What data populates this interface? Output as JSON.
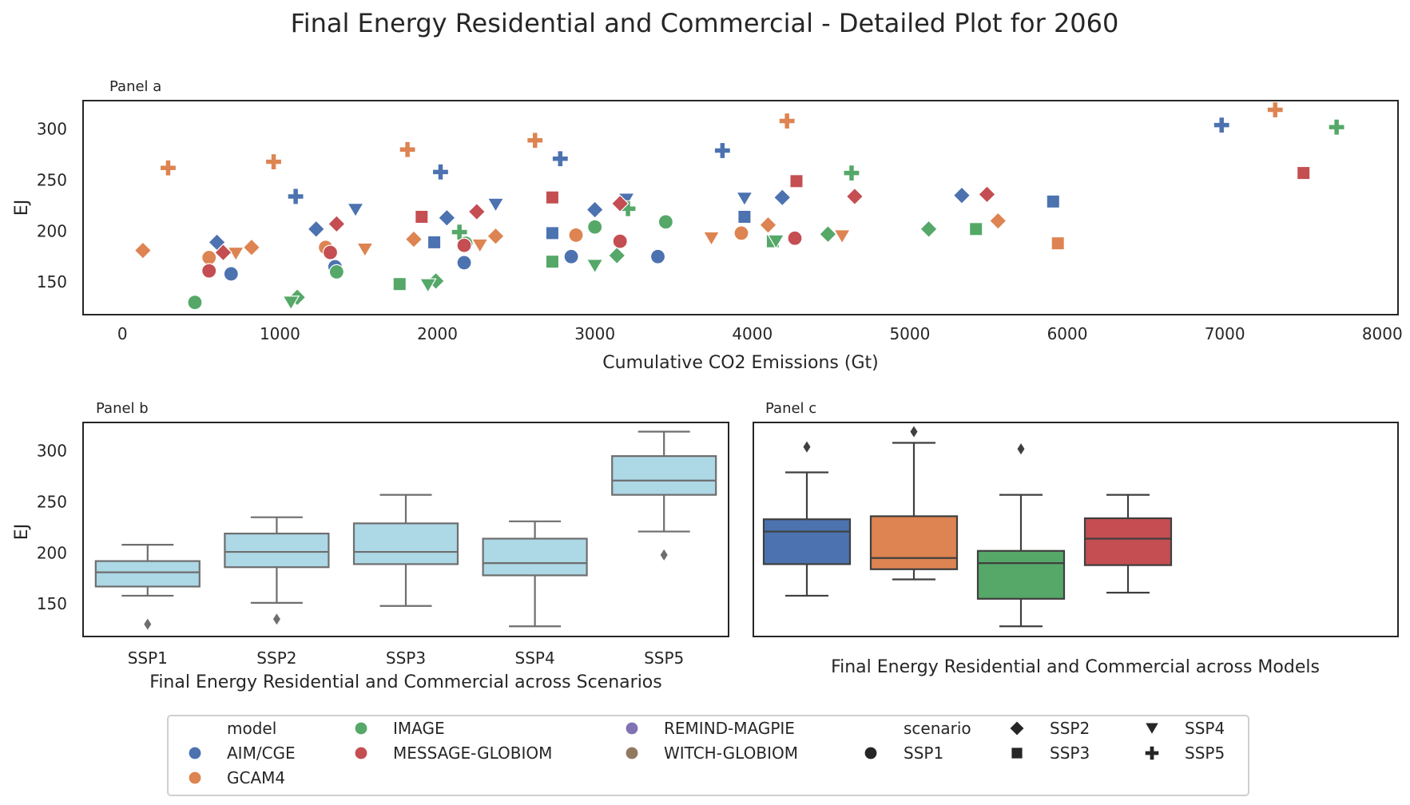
{
  "figure": {
    "title": "Final Energy Residential and Commercial - Detailed Plot for 2060"
  },
  "colors": {
    "AIM/CGE": "#4c72b0",
    "GCAM4": "#dd8452",
    "IMAGE": "#55a868",
    "MESSAGE-GLOBIOM": "#c44e52",
    "REMIND-MAGPIE": "#8172b3",
    "WITCH-GLOBIOM": "#937860",
    "box_scenario": "#add8e6",
    "axis": "#262626",
    "whisker": "#6e6e6e",
    "whisker_models": "#3f3f3f"
  },
  "legend": {
    "model_header": "model",
    "scenario_header": "scenario",
    "models": [
      "AIM/CGE",
      "GCAM4",
      "IMAGE",
      "MESSAGE-GLOBIOM",
      "REMIND-MAGPIE",
      "WITCH-GLOBIOM"
    ],
    "scenarios": [
      {
        "name": "SSP1",
        "marker": "circle"
      },
      {
        "name": "SSP2",
        "marker": "diamond"
      },
      {
        "name": "SSP3",
        "marker": "square"
      },
      {
        "name": "SSP4",
        "marker": "triangle-down"
      },
      {
        "name": "SSP5",
        "marker": "plus"
      }
    ]
  },
  "chart_data": [
    {
      "type": "scatter",
      "panel_label": "Panel a",
      "xlabel": "Cumulative CO2 Emissions (Gt)",
      "ylabel": "EJ",
      "xlim": [
        -250,
        8100
      ],
      "ylim": [
        118,
        328
      ],
      "xticks": [
        0,
        1000,
        2000,
        3000,
        4000,
        5000,
        6000,
        7000,
        8000
      ],
      "yticks": [
        150,
        200,
        250,
        300
      ],
      "grid": false,
      "points": [
        {
          "model": "AIM/CGE",
          "scenario": "SSP1",
          "x": 690,
          "y": 158
        },
        {
          "model": "AIM/CGE",
          "scenario": "SSP1",
          "x": 1350,
          "y": 165
        },
        {
          "model": "AIM/CGE",
          "scenario": "SSP1",
          "x": 2170,
          "y": 169
        },
        {
          "model": "AIM/CGE",
          "scenario": "SSP1",
          "x": 2850,
          "y": 175
        },
        {
          "model": "AIM/CGE",
          "scenario": "SSP1",
          "x": 3400,
          "y": 175
        },
        {
          "model": "AIM/CGE",
          "scenario": "SSP2",
          "x": 600,
          "y": 189
        },
        {
          "model": "AIM/CGE",
          "scenario": "SSP2",
          "x": 1230,
          "y": 202
        },
        {
          "model": "AIM/CGE",
          "scenario": "SSP2",
          "x": 2060,
          "y": 213
        },
        {
          "model": "AIM/CGE",
          "scenario": "SSP2",
          "x": 3000,
          "y": 221
        },
        {
          "model": "AIM/CGE",
          "scenario": "SSP2",
          "x": 4190,
          "y": 233
        },
        {
          "model": "AIM/CGE",
          "scenario": "SSP2",
          "x": 5330,
          "y": 235
        },
        {
          "model": "AIM/CGE",
          "scenario": "SSP3",
          "x": 1980,
          "y": 189
        },
        {
          "model": "AIM/CGE",
          "scenario": "SSP3",
          "x": 2730,
          "y": 198
        },
        {
          "model": "AIM/CGE",
          "scenario": "SSP3",
          "x": 3950,
          "y": 214
        },
        {
          "model": "AIM/CGE",
          "scenario": "SSP3",
          "x": 5910,
          "y": 229
        },
        {
          "model": "AIM/CGE",
          "scenario": "SSP4",
          "x": 1480,
          "y": 221
        },
        {
          "model": "AIM/CGE",
          "scenario": "SSP4",
          "x": 2370,
          "y": 226
        },
        {
          "model": "AIM/CGE",
          "scenario": "SSP4",
          "x": 3200,
          "y": 231
        },
        {
          "model": "AIM/CGE",
          "scenario": "SSP4",
          "x": 3950,
          "y": 232
        },
        {
          "model": "AIM/CGE",
          "scenario": "SSP5",
          "x": 1100,
          "y": 234
        },
        {
          "model": "AIM/CGE",
          "scenario": "SSP5",
          "x": 2020,
          "y": 258
        },
        {
          "model": "AIM/CGE",
          "scenario": "SSP5",
          "x": 2780,
          "y": 271
        },
        {
          "model": "AIM/CGE",
          "scenario": "SSP5",
          "x": 3810,
          "y": 279
        },
        {
          "model": "AIM/CGE",
          "scenario": "SSP5",
          "x": 6980,
          "y": 304
        },
        {
          "model": "GCAM4",
          "scenario": "SSP1",
          "x": 550,
          "y": 174
        },
        {
          "model": "GCAM4",
          "scenario": "SSP1",
          "x": 1290,
          "y": 184
        },
        {
          "model": "GCAM4",
          "scenario": "SSP1",
          "x": 2880,
          "y": 196
        },
        {
          "model": "GCAM4",
          "scenario": "SSP1",
          "x": 3930,
          "y": 198
        },
        {
          "model": "GCAM4",
          "scenario": "SSP2",
          "x": 130,
          "y": 181
        },
        {
          "model": "GCAM4",
          "scenario": "SSP2",
          "x": 820,
          "y": 184
        },
        {
          "model": "GCAM4",
          "scenario": "SSP2",
          "x": 1850,
          "y": 192
        },
        {
          "model": "GCAM4",
          "scenario": "SSP2",
          "x": 2370,
          "y": 195
        },
        {
          "model": "GCAM4",
          "scenario": "SSP2",
          "x": 4100,
          "y": 206
        },
        {
          "model": "GCAM4",
          "scenario": "SSP2",
          "x": 5560,
          "y": 210
        },
        {
          "model": "GCAM4",
          "scenario": "SSP3",
          "x": 5940,
          "y": 188
        },
        {
          "model": "GCAM4",
          "scenario": "SSP4",
          "x": 720,
          "y": 178
        },
        {
          "model": "GCAM4",
          "scenario": "SSP4",
          "x": 1540,
          "y": 182
        },
        {
          "model": "GCAM4",
          "scenario": "SSP4",
          "x": 2270,
          "y": 186
        },
        {
          "model": "GCAM4",
          "scenario": "SSP4",
          "x": 3740,
          "y": 193
        },
        {
          "model": "GCAM4",
          "scenario": "SSP4",
          "x": 4570,
          "y": 195
        },
        {
          "model": "GCAM4",
          "scenario": "SSP5",
          "x": 290,
          "y": 262
        },
        {
          "model": "GCAM4",
          "scenario": "SSP5",
          "x": 960,
          "y": 268
        },
        {
          "model": "GCAM4",
          "scenario": "SSP5",
          "x": 1810,
          "y": 280
        },
        {
          "model": "GCAM4",
          "scenario": "SSP5",
          "x": 2620,
          "y": 289
        },
        {
          "model": "GCAM4",
          "scenario": "SSP5",
          "x": 4220,
          "y": 308
        },
        {
          "model": "GCAM4",
          "scenario": "SSP5",
          "x": 7320,
          "y": 319
        },
        {
          "model": "IMAGE",
          "scenario": "SSP1",
          "x": 460,
          "y": 130
        },
        {
          "model": "IMAGE",
          "scenario": "SSP1",
          "x": 1360,
          "y": 160
        },
        {
          "model": "IMAGE",
          "scenario": "SSP1",
          "x": 2180,
          "y": 188
        },
        {
          "model": "IMAGE",
          "scenario": "SSP1",
          "x": 3000,
          "y": 204
        },
        {
          "model": "IMAGE",
          "scenario": "SSP1",
          "x": 3450,
          "y": 209
        },
        {
          "model": "IMAGE",
          "scenario": "SSP2",
          "x": 1110,
          "y": 135
        },
        {
          "model": "IMAGE",
          "scenario": "SSP2",
          "x": 1990,
          "y": 151
        },
        {
          "model": "IMAGE",
          "scenario": "SSP2",
          "x": 3140,
          "y": 176
        },
        {
          "model": "IMAGE",
          "scenario": "SSP2",
          "x": 4480,
          "y": 197
        },
        {
          "model": "IMAGE",
          "scenario": "SSP2",
          "x": 5120,
          "y": 202
        },
        {
          "model": "IMAGE",
          "scenario": "SSP3",
          "x": 1760,
          "y": 148
        },
        {
          "model": "IMAGE",
          "scenario": "SSP3",
          "x": 2730,
          "y": 170
        },
        {
          "model": "IMAGE",
          "scenario": "SSP3",
          "x": 4130,
          "y": 190
        },
        {
          "model": "IMAGE",
          "scenario": "SSP3",
          "x": 5420,
          "y": 202
        },
        {
          "model": "IMAGE",
          "scenario": "SSP4",
          "x": 1070,
          "y": 130
        },
        {
          "model": "IMAGE",
          "scenario": "SSP4",
          "x": 1940,
          "y": 147
        },
        {
          "model": "IMAGE",
          "scenario": "SSP4",
          "x": 3000,
          "y": 166
        },
        {
          "model": "IMAGE",
          "scenario": "SSP4",
          "x": 4150,
          "y": 190
        },
        {
          "model": "IMAGE",
          "scenario": "SSP5",
          "x": 2140,
          "y": 199
        },
        {
          "model": "IMAGE",
          "scenario": "SSP5",
          "x": 3210,
          "y": 222
        },
        {
          "model": "IMAGE",
          "scenario": "SSP5",
          "x": 4630,
          "y": 257
        },
        {
          "model": "IMAGE",
          "scenario": "SSP5",
          "x": 7710,
          "y": 302
        },
        {
          "model": "MESSAGE-GLOBIOM",
          "scenario": "SSP1",
          "x": 550,
          "y": 161
        },
        {
          "model": "MESSAGE-GLOBIOM",
          "scenario": "SSP1",
          "x": 1320,
          "y": 179
        },
        {
          "model": "MESSAGE-GLOBIOM",
          "scenario": "SSP1",
          "x": 2170,
          "y": 186
        },
        {
          "model": "MESSAGE-GLOBIOM",
          "scenario": "SSP1",
          "x": 3160,
          "y": 190
        },
        {
          "model": "MESSAGE-GLOBIOM",
          "scenario": "SSP1",
          "x": 4270,
          "y": 193
        },
        {
          "model": "MESSAGE-GLOBIOM",
          "scenario": "SSP2",
          "x": 640,
          "y": 179
        },
        {
          "model": "MESSAGE-GLOBIOM",
          "scenario": "SSP2",
          "x": 1360,
          "y": 207
        },
        {
          "model": "MESSAGE-GLOBIOM",
          "scenario": "SSP2",
          "x": 2250,
          "y": 219
        },
        {
          "model": "MESSAGE-GLOBIOM",
          "scenario": "SSP2",
          "x": 3160,
          "y": 227
        },
        {
          "model": "MESSAGE-GLOBIOM",
          "scenario": "SSP2",
          "x": 4650,
          "y": 234
        },
        {
          "model": "MESSAGE-GLOBIOM",
          "scenario": "SSP2",
          "x": 5490,
          "y": 236
        },
        {
          "model": "MESSAGE-GLOBIOM",
          "scenario": "SSP3",
          "x": 1900,
          "y": 214
        },
        {
          "model": "MESSAGE-GLOBIOM",
          "scenario": "SSP3",
          "x": 2730,
          "y": 233
        },
        {
          "model": "MESSAGE-GLOBIOM",
          "scenario": "SSP3",
          "x": 4280,
          "y": 249
        },
        {
          "model": "MESSAGE-GLOBIOM",
          "scenario": "SSP3",
          "x": 7500,
          "y": 257
        }
      ]
    },
    {
      "type": "box",
      "panel_label": "Panel b",
      "xlabel": "Final Energy Residential and Commercial across Scenarios",
      "ylabel": "EJ",
      "ylim": [
        118,
        328
      ],
      "yticks": [
        150,
        200,
        250,
        300
      ],
      "boxes": [
        {
          "category": "SSP1",
          "whisker_low": 158,
          "q1": 167,
          "median": 181,
          "q3": 192,
          "whisker_high": 208,
          "outliers": [
            130
          ]
        },
        {
          "category": "SSP2",
          "whisker_low": 151,
          "q1": 186,
          "median": 201,
          "q3": 219,
          "whisker_high": 235,
          "outliers": [
            135
          ]
        },
        {
          "category": "SSP3",
          "whisker_low": 148,
          "q1": 189,
          "median": 201,
          "q3": 229,
          "whisker_high": 257,
          "outliers": []
        },
        {
          "category": "SSP4",
          "whisker_low": 128,
          "q1": 178,
          "median": 190,
          "q3": 214,
          "whisker_high": 231,
          "outliers": []
        },
        {
          "category": "SSP5",
          "whisker_low": 221,
          "q1": 257,
          "median": 271,
          "q3": 295,
          "whisker_high": 319,
          "outliers": [
            198
          ]
        }
      ]
    },
    {
      "type": "box",
      "panel_label": "Panel c",
      "xlabel": "Final Energy Residential and Commercial across Models",
      "ylabel": "",
      "ylim": [
        118,
        328
      ],
      "boxes": [
        {
          "category": "AIM/CGE",
          "whisker_low": 158,
          "q1": 189,
          "median": 221,
          "q3": 233,
          "whisker_high": 279,
          "outliers": [
            304
          ]
        },
        {
          "category": "GCAM4",
          "whisker_low": 174,
          "q1": 184,
          "median": 195,
          "q3": 236,
          "whisker_high": 308,
          "outliers": [
            319
          ]
        },
        {
          "category": "IMAGE",
          "whisker_low": 128,
          "q1": 155,
          "median": 190,
          "q3": 202,
          "whisker_high": 257,
          "outliers": [
            302
          ]
        },
        {
          "category": "MESSAGE-GLOBIOM",
          "whisker_low": 161,
          "q1": 188,
          "median": 214,
          "q3": 234,
          "whisker_high": 257,
          "outliers": []
        }
      ]
    }
  ]
}
